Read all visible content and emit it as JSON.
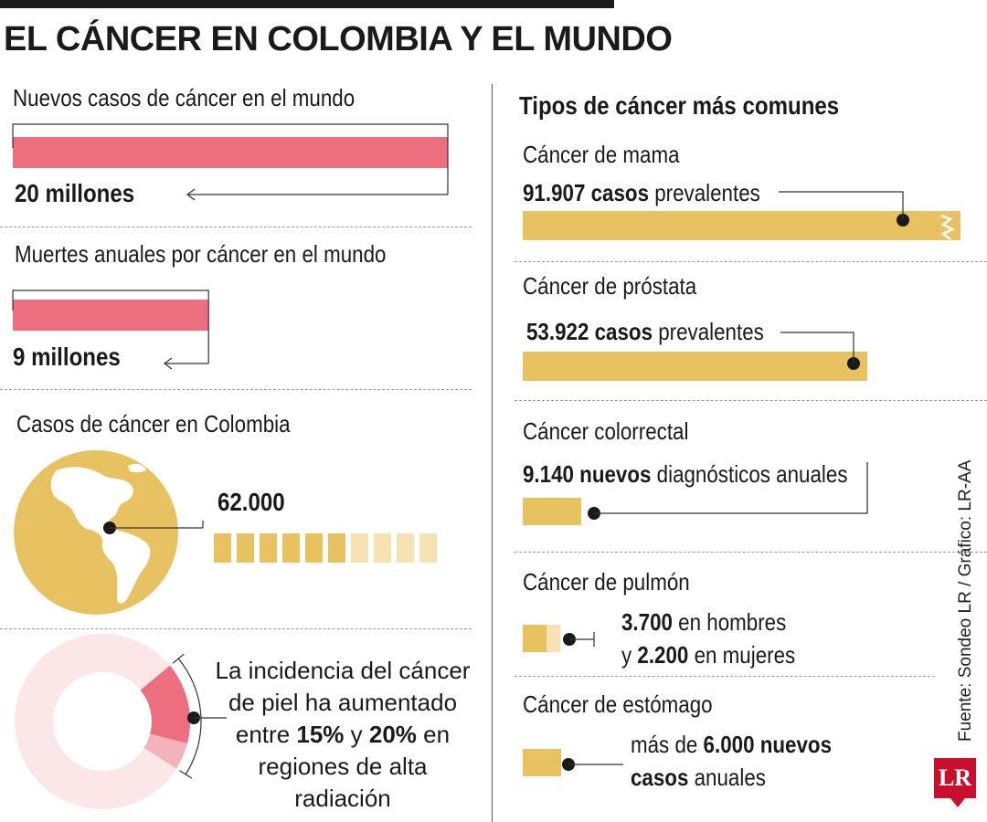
{
  "title": "EL CÁNCER EN COLOMBIA Y EL MUNDO",
  "colors": {
    "pink": "#ed6e7f",
    "pink_light": "#f4b2bb",
    "pink_bg": "#fbe6e8",
    "gold": "#e8c160",
    "gold_light": "#f6e2b2",
    "ink": "#1a1a1a",
    "logo_red": "#c8102e"
  },
  "world": {
    "new_cases": {
      "label": "Nuevos casos de cáncer en el mundo",
      "value_text": "20 millones",
      "value": 20
    },
    "deaths": {
      "label": "Muertes anuales por cáncer en el mundo",
      "value_text": "9 millones",
      "value": 9
    }
  },
  "colombia": {
    "label": "Casos de cáncer en Colombia",
    "value_text": "62.000",
    "globe_icon": "globe-americas-icon",
    "blocks_total": 10,
    "blocks_filled": 6
  },
  "skin": {
    "line1": "La incidencia del cáncer",
    "line2": "de piel ha aumentado",
    "line3_a": "entre ",
    "line3_b": "15%",
    "line3_c": " y ",
    "line3_d": "20%",
    "line3_e": " en",
    "line4": "regiones de alta radiación",
    "range_low_pct": 15,
    "range_high_pct": 20
  },
  "types": {
    "title": "Tipos de cáncer más comunes",
    "breast": {
      "label": "Cáncer de mama",
      "value_bold": "91.907 casos",
      "value_rest": " prevalentes"
    },
    "prostate": {
      "label": "Cáncer de próstata",
      "value_bold": "53.922 casos",
      "value_rest": " prevalentes"
    },
    "colorectal": {
      "label": "Cáncer colorrectal",
      "value_bold": "9.140 nuevos",
      "value_rest": " diagnósticos anuales"
    },
    "lung": {
      "label": "Cáncer de pulmón",
      "men_bold": "3.700",
      "men_rest": " en hombres",
      "women_pre": "y ",
      "women_bold": "2.200",
      "women_rest": " en mujeres"
    },
    "stomach": {
      "label": "Cáncer de estómago",
      "pre": "más de ",
      "bold1": "6.000 nuevos",
      "bold2": "casos",
      "rest": " anuales"
    }
  },
  "chart_data": {
    "type": "bar",
    "title": "EL CÁNCER EN COLOMBIA Y EL MUNDO",
    "world": {
      "categories": [
        "Nuevos casos de cáncer en el mundo",
        "Muertes anuales por cáncer en el mundo"
      ],
      "values": [
        20000000,
        9000000
      ]
    },
    "colombia_cases": 62000,
    "cancer_types": {
      "categories": [
        "Cáncer de mama",
        "Cáncer de próstata",
        "Cáncer colorrectal",
        "Cáncer de pulmón (hombres)",
        "Cáncer de pulmón (mujeres)",
        "Cáncer de estómago"
      ],
      "values": [
        91907,
        53922,
        9140,
        3700,
        2200,
        6000
      ]
    },
    "skin_incidence_increase_pct": [
      15,
      20
    ]
  },
  "source": "Fuente: Sondeo LR / Gráfico: LR-AA",
  "logo": "LR"
}
